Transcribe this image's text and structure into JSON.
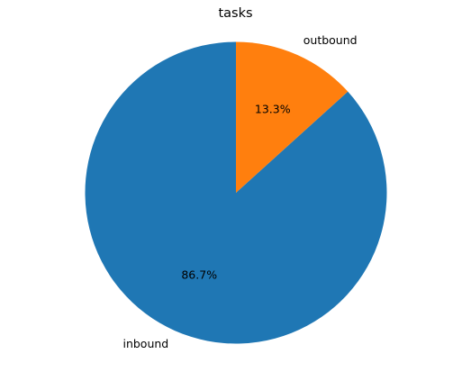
{
  "chart_data": {
    "type": "pie",
    "title": "tasks",
    "categories": [
      "inbound",
      "outbound"
    ],
    "values": [
      86.7,
      13.3
    ],
    "percent_labels": [
      "86.7%",
      "13.3%"
    ],
    "colors": [
      "#1f77b4",
      "#ff7f0e"
    ],
    "start_angle_deg": 90,
    "direction": "counterclockwise"
  }
}
